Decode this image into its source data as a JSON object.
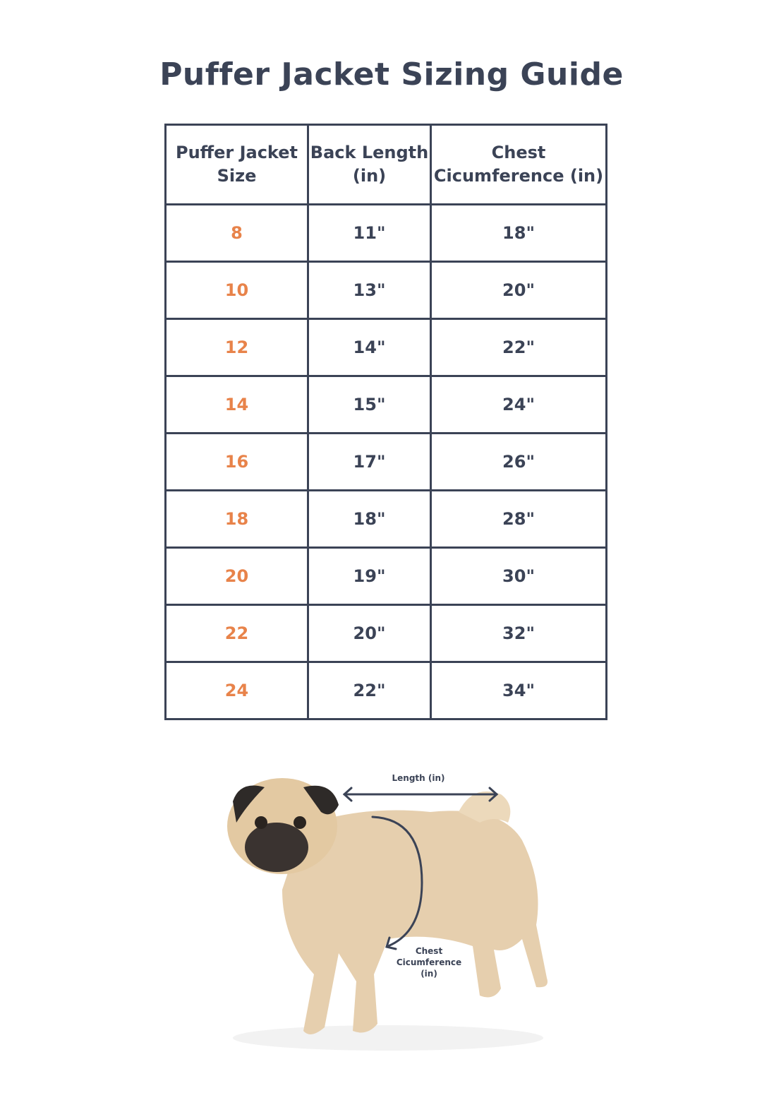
{
  "title": "Puffer Jacket Sizing Guide",
  "table": {
    "headers": [
      "Puffer Jacket Size",
      "Back Length (in)",
      "Chest Cicumference (in)"
    ],
    "rows": [
      [
        "8",
        "11\"",
        "18\""
      ],
      [
        "10",
        "13\"",
        "20\""
      ],
      [
        "12",
        "14\"",
        "22\""
      ],
      [
        "14",
        "15\"",
        "24\""
      ],
      [
        "16",
        "17\"",
        "26\""
      ],
      [
        "18",
        "18\"",
        "28\""
      ],
      [
        "20",
        "19\"",
        "30\""
      ],
      [
        "22",
        "20\"",
        "32\""
      ],
      [
        "24",
        "22\"",
        "34\""
      ]
    ]
  },
  "diagram": {
    "length_label": "Length (in)",
    "chest_label": "Chest Cicumference (in)"
  },
  "colors": {
    "text": "#3b4356",
    "size_accent": "#e8834a"
  }
}
